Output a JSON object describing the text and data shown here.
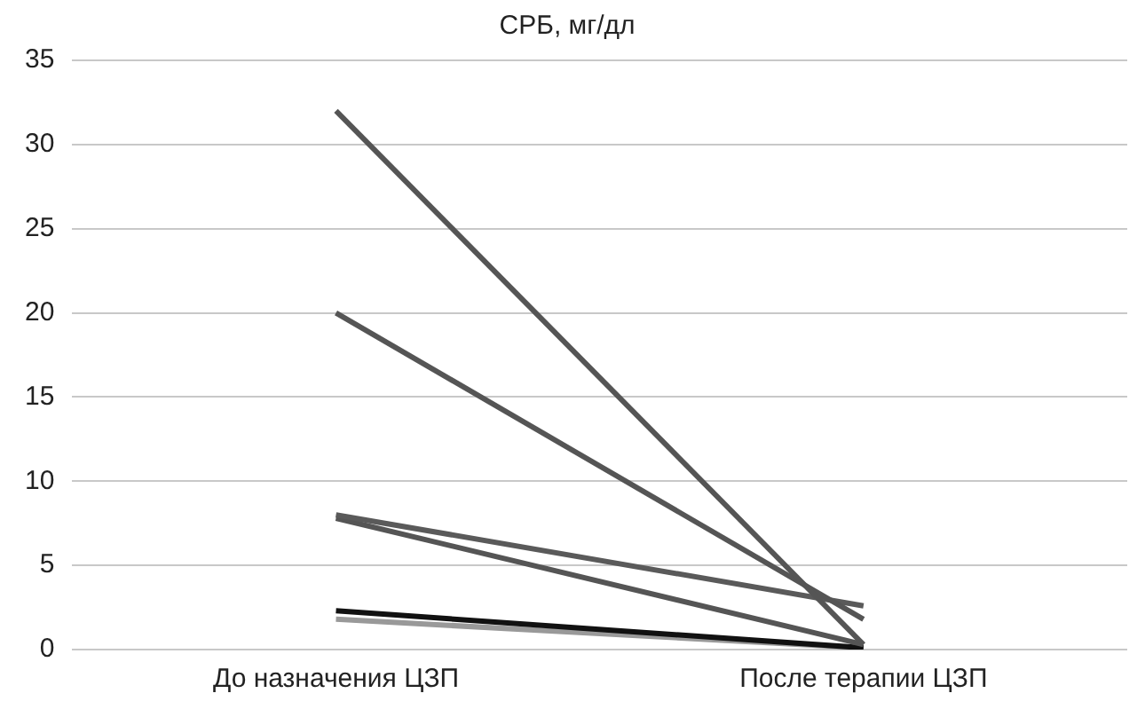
{
  "chart_data": {
    "type": "line",
    "title": "СРБ, мг/дл",
    "categories": [
      "До назначения ЦЗП",
      "После терапии ЦЗП"
    ],
    "series": [
      {
        "color": "#555555",
        "values": [
          32,
          0.3
        ]
      },
      {
        "color": "#555555",
        "values": [
          20,
          1.8
        ]
      },
      {
        "color": "#5a5a5a",
        "values": [
          8,
          2.6
        ]
      },
      {
        "color": "#555555",
        "values": [
          7.8,
          0.3
        ]
      },
      {
        "color": "#111111",
        "values": [
          2.3,
          0.1
        ]
      },
      {
        "color": "#999999",
        "values": [
          1.8,
          0.1
        ]
      }
    ],
    "ylim": [
      0,
      35
    ],
    "yticks": [
      0,
      5,
      10,
      15,
      20,
      25,
      30,
      35
    ],
    "grid": "y",
    "legend": false,
    "marker": "none",
    "line_style": "solid"
  }
}
